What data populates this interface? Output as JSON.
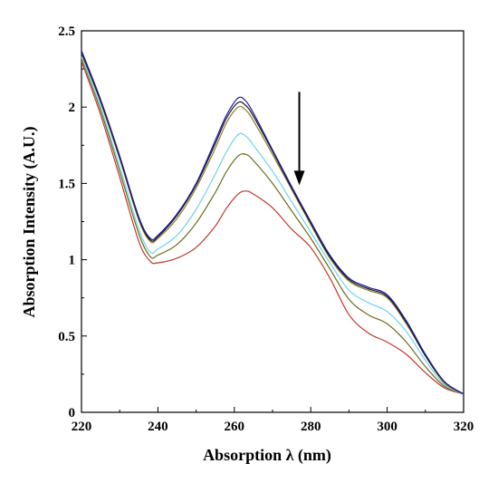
{
  "chart_data": {
    "type": "line",
    "title": "",
    "xlabel": "Absorption λ (nm)",
    "ylabel": "Absorption Intensity (A.U.)",
    "xlim": [
      220,
      320
    ],
    "ylim": [
      0,
      2.5
    ],
    "x_ticks": [
      220,
      240,
      260,
      280,
      300,
      320
    ],
    "x_tick_labels": [
      "220",
      "240",
      "260",
      "280",
      "300",
      "320"
    ],
    "y_ticks": [
      0,
      0.5,
      1,
      1.5,
      2,
      2.5
    ],
    "y_tick_labels": [
      "0",
      "0.5",
      "1",
      "1.5",
      "2",
      "2.5"
    ],
    "grid": false,
    "legend": "none",
    "x": [
      220,
      225,
      230,
      235,
      238,
      240,
      245,
      250,
      255,
      258,
      261,
      263,
      265,
      270,
      275,
      280,
      285,
      290,
      295,
      300,
      305,
      310,
      315,
      320
    ],
    "series": [
      {
        "color": "#1a1aa6",
        "values": [
          2.37,
          2.05,
          1.68,
          1.28,
          1.14,
          1.16,
          1.3,
          1.5,
          1.78,
          1.95,
          2.06,
          2.04,
          1.96,
          1.72,
          1.48,
          1.25,
          1.03,
          0.88,
          0.82,
          0.77,
          0.6,
          0.38,
          0.2,
          0.12
        ]
      },
      {
        "color": "#1a1a1a",
        "values": [
          2.36,
          2.04,
          1.67,
          1.27,
          1.13,
          1.15,
          1.29,
          1.49,
          1.76,
          1.93,
          2.03,
          2.01,
          1.94,
          1.71,
          1.47,
          1.24,
          1.02,
          0.87,
          0.81,
          0.76,
          0.59,
          0.37,
          0.2,
          0.12
        ]
      },
      {
        "color": "#8b7d2a",
        "values": [
          2.35,
          2.03,
          1.66,
          1.26,
          1.12,
          1.14,
          1.27,
          1.47,
          1.73,
          1.9,
          2.0,
          1.98,
          1.91,
          1.69,
          1.46,
          1.23,
          1.01,
          0.86,
          0.8,
          0.75,
          0.58,
          0.37,
          0.19,
          0.12
        ]
      },
      {
        "color": "#6fd3ee",
        "values": [
          2.33,
          2.0,
          1.61,
          1.2,
          1.05,
          1.07,
          1.16,
          1.33,
          1.56,
          1.71,
          1.82,
          1.81,
          1.75,
          1.58,
          1.38,
          1.18,
          0.98,
          0.8,
          0.72,
          0.66,
          0.53,
          0.34,
          0.18,
          0.12
        ]
      },
      {
        "color": "#6b6b1c",
        "values": [
          2.32,
          1.98,
          1.58,
          1.17,
          1.02,
          1.03,
          1.1,
          1.24,
          1.44,
          1.58,
          1.68,
          1.69,
          1.65,
          1.5,
          1.32,
          1.14,
          0.94,
          0.74,
          0.64,
          0.58,
          0.46,
          0.3,
          0.17,
          0.12
        ]
      },
      {
        "color": "#c0392b",
        "values": [
          2.3,
          1.95,
          1.54,
          1.12,
          0.99,
          0.98,
          1.01,
          1.08,
          1.22,
          1.34,
          1.43,
          1.45,
          1.43,
          1.34,
          1.2,
          1.08,
          0.88,
          0.64,
          0.52,
          0.46,
          0.38,
          0.26,
          0.16,
          0.12
        ]
      }
    ],
    "annotation": {
      "type": "arrow",
      "direction": "down",
      "x": 277,
      "y_from": 2.1,
      "y_to": 1.5
    }
  }
}
